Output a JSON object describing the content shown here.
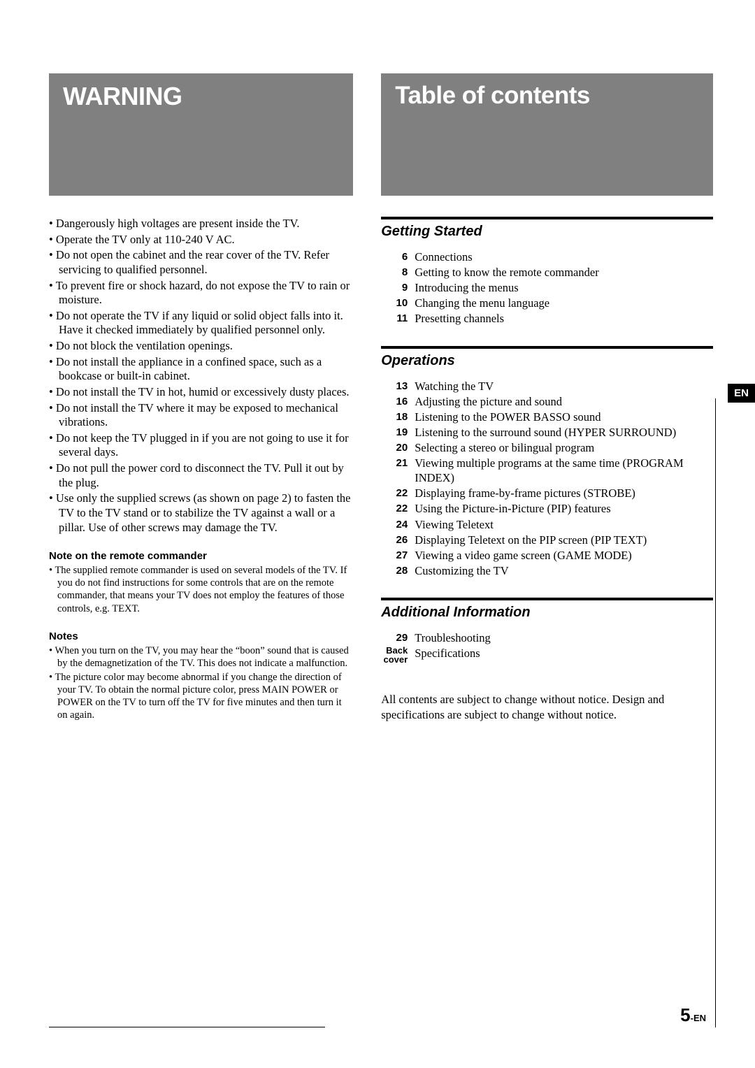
{
  "left": {
    "title": "WARNING",
    "warnings": [
      "Dangerously high voltages are present inside the TV.",
      "Operate the TV only at 110-240 V AC.",
      "Do not open the cabinet and the rear cover of the TV. Refer servicing to qualified personnel.",
      "To prevent fire or shock hazard, do not expose the TV to rain or moisture.",
      "Do not operate the TV if any liquid or solid object falls into it. Have it checked immediately by qualified personnel only.",
      "Do not block the ventilation openings.",
      "Do not install the appliance in a confined space, such as a bookcase or built-in cabinet.",
      "Do not install the TV in hot, humid or excessively dusty places.",
      "Do not install the TV where it may be exposed to mechanical vibrations.",
      "Do not keep the TV plugged in if you are not going to use it for several days.",
      "Do not pull the power cord to disconnect the TV. Pull it out by the plug.",
      "Use only the supplied screws (as shown on page 2) to fasten the TV to the TV stand or to stabilize the TV against a wall or a pillar. Use of other screws may damage the TV."
    ],
    "note_remote_heading": "Note on the remote commander",
    "note_remote_items": [
      "The supplied remote commander is used on several models of the TV. If you do not find instructions for some controls that are on the remote commander, that means your TV does not employ the features of those controls, e.g. TEXT."
    ],
    "notes_heading": "Notes",
    "notes_items": [
      "When you turn on the TV, you may hear the “boon” sound that is caused by the demagnetization of the TV. This does not indicate a malfunction.",
      "The picture color may become abnormal if you change the direction of your TV. To obtain the normal picture color, press MAIN POWER or POWER on the TV to turn off the TV for five minutes and then turn it on again."
    ]
  },
  "right": {
    "title": "Table of contents",
    "sections": [
      {
        "heading": "Getting Started",
        "items": [
          {
            "page": "6",
            "text": "Connections"
          },
          {
            "page": "8",
            "text": "Getting to know the remote commander"
          },
          {
            "page": "9",
            "text": "Introducing the menus"
          },
          {
            "page": "10",
            "text": "Changing the menu language"
          },
          {
            "page": "11",
            "text": "Presetting channels"
          }
        ]
      },
      {
        "heading": "Operations",
        "items": [
          {
            "page": "13",
            "text": "Watching the TV"
          },
          {
            "page": "16",
            "text": "Adjusting the picture and sound"
          },
          {
            "page": "18",
            "text": "Listening to the POWER BASSO sound"
          },
          {
            "page": "19",
            "text": "Listening to the surround sound (HYPER SURROUND)"
          },
          {
            "page": "20",
            "text": "Selecting a stereo or bilingual program"
          },
          {
            "page": "21",
            "text": "Viewing multiple programs at the same time (PROGRAM INDEX)"
          },
          {
            "page": "22",
            "text": "Displaying frame-by-frame pictures (STROBE)"
          },
          {
            "page": "22",
            "text": "Using the Picture-in-Picture (PIP) features"
          },
          {
            "page": "24",
            "text": "Viewing Teletext"
          },
          {
            "page": "26",
            "text": "Displaying Teletext on the PIP screen (PIP TEXT)"
          },
          {
            "page": "27",
            "text": "Viewing a video game screen (GAME MODE)"
          },
          {
            "page": "28",
            "text": "Customizing the TV"
          }
        ]
      },
      {
        "heading": "Additional Information",
        "items": [
          {
            "page": "29",
            "text": "Troubleshooting"
          },
          {
            "page": "Back cover",
            "text": "Specifications",
            "back": true
          }
        ]
      }
    ],
    "disclaimer": "All contents are subject to change without notice. Design and specifications are subject to change without notice."
  },
  "lang_tab": "EN",
  "page_number": {
    "big": "5",
    "suffix": "-EN"
  }
}
